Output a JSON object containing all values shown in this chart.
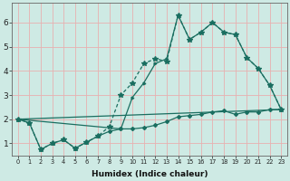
{
  "xlabel": "Humidex (Indice chaleur)",
  "ylabel": "",
  "xlim": [
    -0.5,
    23.5
  ],
  "ylim": [
    0.5,
    6.8
  ],
  "xticks": [
    0,
    1,
    2,
    3,
    4,
    5,
    6,
    7,
    8,
    9,
    10,
    11,
    12,
    13,
    14,
    15,
    16,
    17,
    18,
    19,
    20,
    21,
    22,
    23
  ],
  "yticks": [
    1,
    2,
    3,
    4,
    5,
    6
  ],
  "background_color": "#ceeae4",
  "grid_color": "#e8b0b0",
  "line_color": "#1a6e60",
  "line1_x": [
    0,
    1,
    2,
    3,
    4,
    5,
    6,
    7,
    8,
    9,
    10,
    11,
    12,
    13,
    14,
    15,
    16,
    17,
    18,
    19,
    20,
    21,
    22,
    23
  ],
  "line1_y": [
    2.0,
    1.85,
    0.75,
    1.0,
    1.15,
    0.8,
    1.05,
    1.3,
    1.5,
    1.6,
    1.6,
    1.65,
    1.75,
    1.9,
    2.1,
    2.15,
    2.2,
    2.3,
    2.35,
    2.2,
    2.3,
    2.3,
    2.4,
    2.4
  ],
  "line2_x": [
    0,
    1,
    2,
    3,
    4,
    5,
    6,
    7,
    8,
    9,
    10,
    11,
    12,
    13,
    14,
    15,
    16,
    17,
    18,
    19,
    20,
    21,
    22,
    23
  ],
  "line2_y": [
    2.0,
    1.85,
    0.75,
    1.0,
    1.15,
    0.8,
    1.05,
    1.3,
    1.7,
    3.0,
    3.5,
    4.3,
    4.5,
    4.4,
    6.3,
    5.3,
    5.6,
    6.0,
    5.6,
    5.5,
    4.55,
    4.1,
    3.4,
    2.4
  ],
  "line3_x": [
    0,
    23
  ],
  "line3_y": [
    2.0,
    2.4
  ],
  "line4_x": [
    0,
    9,
    10,
    11,
    12,
    13,
    14,
    15,
    16,
    17,
    18,
    19,
    20,
    21,
    22,
    23
  ],
  "line4_y": [
    2.0,
    1.6,
    2.9,
    3.5,
    4.3,
    4.5,
    6.3,
    5.3,
    5.6,
    6.0,
    5.6,
    5.5,
    4.55,
    4.1,
    3.4,
    2.4
  ]
}
